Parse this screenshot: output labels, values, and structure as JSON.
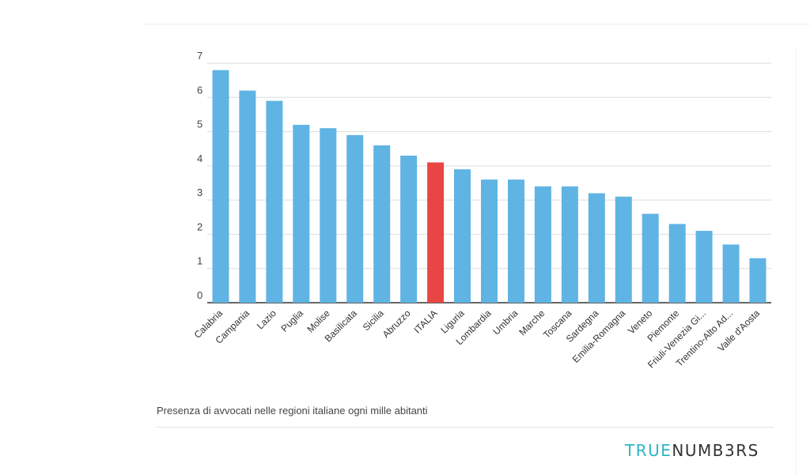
{
  "caption": "Presenza di avvocati nelle regioni italiane ogni mille abitanti",
  "logo": {
    "part1": "TRUE",
    "part2": "NUMB3RS"
  },
  "colors": {
    "bar": "#5fb4e4",
    "highlight": "#e84644",
    "logo_accent": "#2bb5c4",
    "logo_dark": "#333333",
    "grid": "#dddddd",
    "axis": "#333333"
  },
  "chart_data": {
    "type": "bar",
    "title": "",
    "xlabel": "",
    "ylabel": "",
    "ylim": [
      0,
      7
    ],
    "yticks": [
      0,
      1,
      2,
      3,
      4,
      5,
      6,
      7
    ],
    "grid": true,
    "highlight_category": "ITALIA",
    "categories": [
      "Calabria",
      "Campania",
      "Lazio",
      "Puglia",
      "Molise",
      "Basilicata",
      "Sicilia",
      "Abruzzo",
      "ITALIA",
      "Liguria",
      "Lombardia",
      "Umbria",
      "Marche",
      "Toscana",
      "Sardegna",
      "Emilia-Romagna",
      "Veneto",
      "Piemonte",
      "Friuli-Venezia Gi...",
      "Trentino-Alto Ad...",
      "Valle d'Aosta"
    ],
    "values": [
      6.8,
      6.2,
      5.9,
      5.2,
      5.1,
      4.9,
      4.6,
      4.3,
      4.1,
      3.9,
      3.6,
      3.6,
      3.4,
      3.4,
      3.2,
      3.1,
      2.6,
      2.3,
      2.1,
      1.7,
      1.3
    ]
  }
}
